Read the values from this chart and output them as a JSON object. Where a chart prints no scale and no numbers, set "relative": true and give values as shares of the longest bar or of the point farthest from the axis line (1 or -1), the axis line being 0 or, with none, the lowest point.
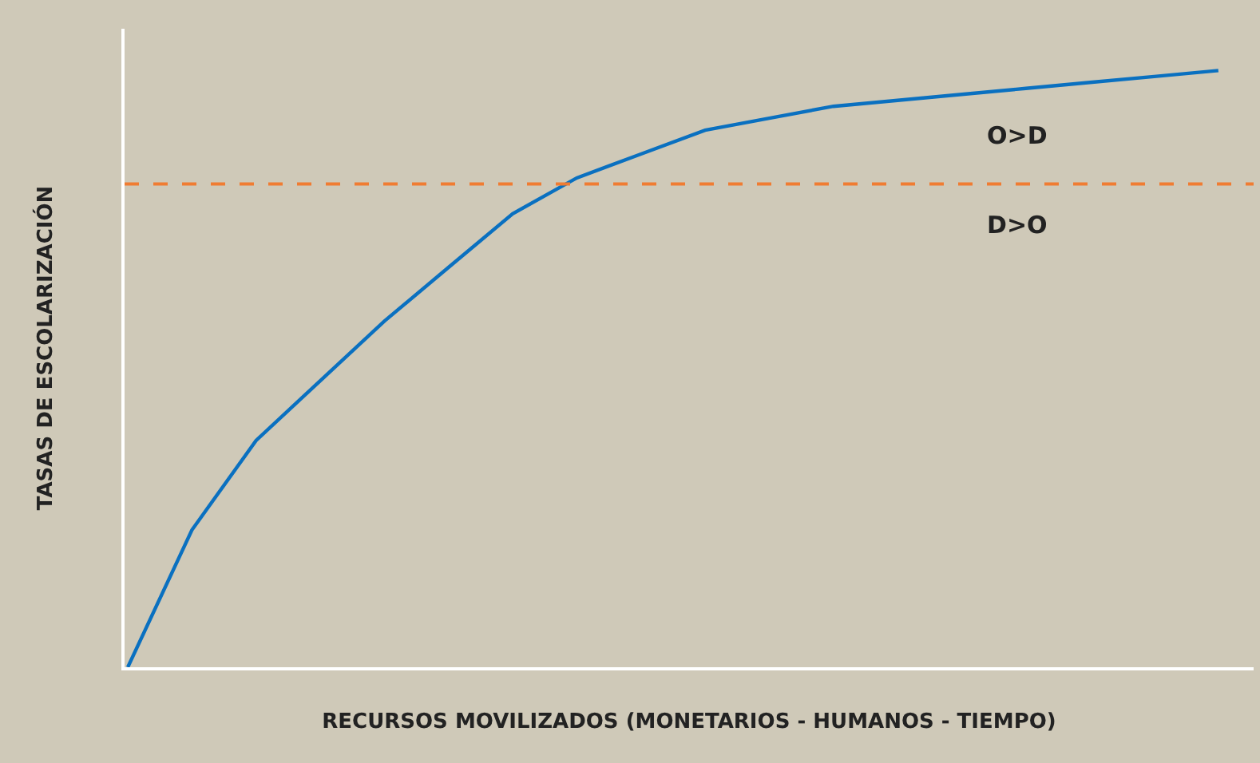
{
  "chart_data": {
    "type": "line",
    "relative": true,
    "xlabel": "RECURSOS MOVILIZADOS (MONETARIOS - HUMANOS - TIEMPO)",
    "ylabel": "TASAS DE ESCOLARIZACIÓN",
    "categories": [
      null,
      null,
      null,
      null,
      null,
      null,
      null,
      null,
      null,
      null,
      null,
      null,
      null,
      null,
      null,
      null,
      null,
      null
    ],
    "series": [
      {
        "color": "#0a70c0",
        "values": [
          0,
          0.23,
          0.38,
          0.48,
          0.58,
          0.67,
          0.76,
          0.82,
          0.86,
          0.9,
          0.92,
          0.94,
          0.95,
          0.96,
          0.97,
          0.98,
          0.99,
          1
        ]
      }
    ],
    "ref_lines": [
      {
        "axis": "y",
        "value": 0.81,
        "color": "#f07c32",
        "line_style": "dashed"
      }
    ],
    "annotations": [
      "O>D",
      "D>O"
    ],
    "marker": "none",
    "line_style": "solid",
    "grid": false,
    "tick_labels": false
  }
}
